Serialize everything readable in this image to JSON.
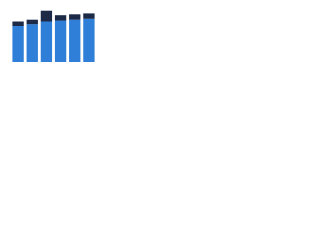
{
  "chart_data": {
    "type": "stacked-bar",
    "categories": [
      null,
      null,
      null,
      null,
      null,
      null
    ],
    "series": [
      {
        "color": "#2f7ed8",
        "values": [
          40,
          42,
          45,
          46,
          47,
          48
        ]
      },
      {
        "color": "#1c2a48",
        "values": [
          5,
          5,
          12,
          6,
          6,
          6
        ]
      }
    ],
    "ylim": [
      0,
      60
    ]
  }
}
